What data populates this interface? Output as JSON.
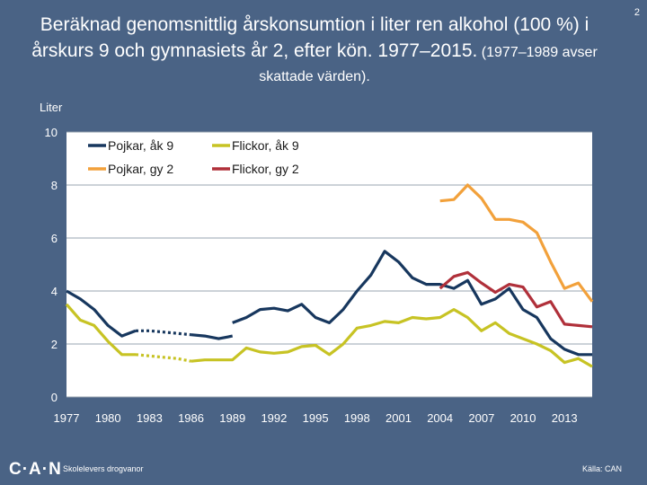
{
  "page_number": "2",
  "title": {
    "main": "Beräknad genomsnittlig årskonsumtion i liter ren alkohol (100 %) i årskurs 9 och gymnasiets år 2, efter kön. 1977–2015.",
    "sub": " (1977–1989 avser skattade värden)."
  },
  "footer": {
    "logo": "C·A·N",
    "org": "Skolelevers drogvanor",
    "source": "Källa: CAN"
  },
  "colors": {
    "background": "#4a6385",
    "plot_area": "#ffffff",
    "pojkar_ak9": "#17375e",
    "pojkar_gy2": "#f2a13b",
    "flickor_ak9": "#c7c324",
    "flickor_gy2": "#b0303a",
    "text": "#ffffff"
  },
  "chart_data": {
    "type": "line",
    "title": "",
    "ylabel": "Liter",
    "xlabel": "",
    "xlim": [
      1977,
      2015
    ],
    "ylim": [
      0,
      10
    ],
    "yticks": [
      0,
      2,
      4,
      6,
      8,
      10
    ],
    "xticks": [
      1977,
      1980,
      1983,
      1986,
      1989,
      1992,
      1995,
      1998,
      2001,
      2004,
      2007,
      2010,
      2013
    ],
    "grid": "horizontal",
    "legend_position": "top-left",
    "series": [
      {
        "name": "Pojkar, åk 9",
        "color_key": "pojkar_ak9",
        "segments": [
          {
            "style": "solid",
            "x": [
              1977,
              1978,
              1979,
              1980,
              1981,
              1982
            ],
            "y": [
              4.0,
              3.7,
              3.3,
              2.7,
              2.3,
              2.5
            ]
          },
          {
            "style": "dotted",
            "x": [
              1982,
              1983,
              1984,
              1985,
              1986
            ],
            "y": [
              2.5,
              2.5,
              2.45,
              2.4,
              2.35
            ]
          },
          {
            "style": "solid",
            "x": [
              1986,
              1987,
              1988,
              1989
            ],
            "y": [
              2.35,
              2.3,
              2.2,
              2.3
            ]
          },
          {
            "style": "solid",
            "x": [
              1989,
              1990,
              1991,
              1992,
              1993,
              1994,
              1995,
              1996,
              1997,
              1998,
              1999,
              2000,
              2001,
              2002,
              2003,
              2004,
              2005,
              2006,
              2007,
              2008,
              2009,
              2010,
              2011,
              2012,
              2013,
              2014,
              2015
            ],
            "y": [
              2.8,
              3.0,
              3.3,
              3.35,
              3.25,
              3.5,
              3.0,
              2.8,
              3.3,
              4.0,
              4.6,
              5.5,
              5.1,
              4.5,
              4.25,
              4.25,
              4.1,
              4.4,
              3.5,
              3.7,
              4.1,
              3.3,
              3.0,
              2.2,
              1.8,
              1.6,
              1.6
            ]
          }
        ]
      },
      {
        "name": "Flickor, åk 9",
        "color_key": "flickor_ak9",
        "segments": [
          {
            "style": "solid",
            "x": [
              1977,
              1978,
              1979,
              1980,
              1981,
              1982
            ],
            "y": [
              3.5,
              2.9,
              2.7,
              2.1,
              1.6,
              1.6
            ]
          },
          {
            "style": "dotted",
            "x": [
              1982,
              1983,
              1984,
              1985,
              1986
            ],
            "y": [
              1.6,
              1.55,
              1.5,
              1.45,
              1.35
            ]
          },
          {
            "style": "solid",
            "x": [
              1986,
              1987,
              1988,
              1989,
              1990,
              1991,
              1992,
              1993,
              1994,
              1995,
              1996,
              1997,
              1998,
              1999,
              2000,
              2001,
              2002,
              2003,
              2004,
              2005,
              2006,
              2007,
              2008,
              2009,
              2010,
              2011,
              2012,
              2013,
              2014,
              2015
            ],
            "y": [
              1.35,
              1.4,
              1.4,
              1.4,
              1.85,
              1.7,
              1.65,
              1.7,
              1.9,
              1.95,
              1.6,
              2.0,
              2.6,
              2.7,
              2.85,
              2.8,
              3.0,
              2.95,
              3.0,
              3.3,
              3.0,
              2.5,
              2.8,
              2.4,
              2.2,
              2.0,
              1.75,
              1.3,
              1.45,
              1.15
            ]
          }
        ]
      },
      {
        "name": "Pojkar, gy 2",
        "color_key": "pojkar_gy2",
        "segments": [
          {
            "style": "solid",
            "x": [
              2004,
              2005,
              2006,
              2007,
              2008,
              2009,
              2010,
              2011,
              2012,
              2013,
              2014,
              2015
            ],
            "y": [
              7.4,
              7.45,
              8.0,
              7.5,
              6.7,
              6.7,
              6.6,
              6.2,
              5.1,
              4.1,
              4.3,
              3.6
            ]
          }
        ]
      },
      {
        "name": "Flickor, gy 2",
        "color_key": "flickor_gy2",
        "segments": [
          {
            "style": "solid",
            "x": [
              2004,
              2005,
              2006,
              2007,
              2008,
              2009,
              2010,
              2011,
              2012,
              2013,
              2014,
              2015
            ],
            "y": [
              4.1,
              4.55,
              4.7,
              4.3,
              3.95,
              4.25,
              4.15,
              3.4,
              3.6,
              2.75,
              2.7,
              2.65
            ]
          }
        ]
      }
    ]
  }
}
